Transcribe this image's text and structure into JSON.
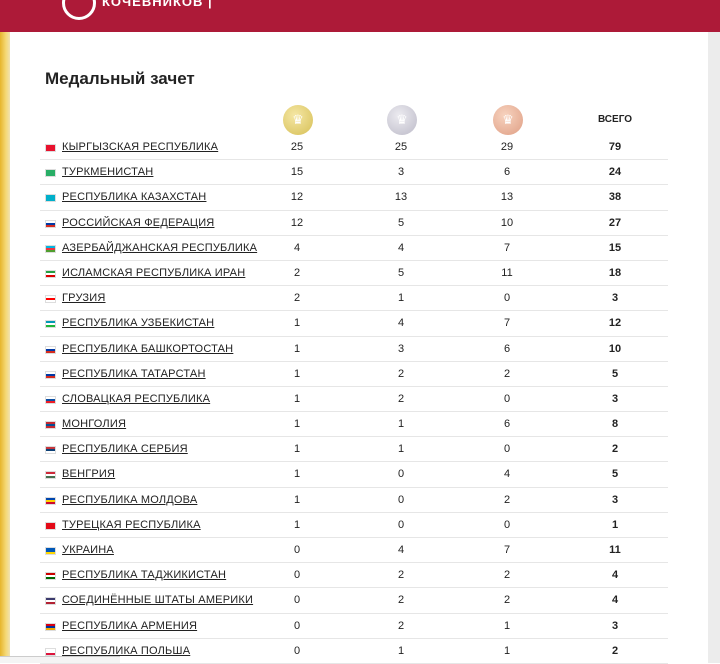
{
  "header": {
    "logo_text": "КОЧЕВНИКОВ |"
  },
  "page": {
    "title": "Медальный зачет"
  },
  "columns": {
    "gold_icon": "gold-medal-icon",
    "silver_icon": "silver-medal-icon",
    "bronze_icon": "bronze-medal-icon",
    "total": "ВСЕГО"
  },
  "rows": [
    {
      "country": "КЫРГЫЗСКАЯ РЕСПУБЛИКА",
      "gold": 25,
      "silver": 25,
      "bronze": 29,
      "total": 79,
      "flag": [
        "#e8112d",
        "#e8112d",
        "#e8112d"
      ]
    },
    {
      "country": "ТУРКМЕНИСТАН",
      "gold": 15,
      "silver": 3,
      "bronze": 6,
      "total": 24,
      "flag": [
        "#28ae66",
        "#28ae66",
        "#28ae66"
      ]
    },
    {
      "country": "РЕСПУБЛИКА КАЗАХСТАН",
      "gold": 12,
      "silver": 13,
      "bronze": 13,
      "total": 38,
      "flag": [
        "#00afca",
        "#00afca",
        "#00afca"
      ]
    },
    {
      "country": "РОССИЙСКАЯ ФЕДЕРАЦИЯ",
      "gold": 12,
      "silver": 5,
      "bronze": 10,
      "total": 27,
      "flag": [
        "#ffffff",
        "#0039a6",
        "#d52b1e"
      ]
    },
    {
      "country": "АЗЕРБАЙДЖАНСКАЯ РЕСПУБЛИКА",
      "gold": 4,
      "silver": 4,
      "bronze": 7,
      "total": 15,
      "flag": [
        "#00b5e2",
        "#ef3340",
        "#509e2f"
      ]
    },
    {
      "country": "ИСЛАМСКАЯ РЕСПУБЛИКА ИРАН",
      "gold": 2,
      "silver": 5,
      "bronze": 11,
      "total": 18,
      "flag": [
        "#239f40",
        "#ffffff",
        "#da0000"
      ]
    },
    {
      "country": "ГРУЗИЯ",
      "gold": 2,
      "silver": 1,
      "bronze": 0,
      "total": 3,
      "flag": [
        "#ffffff",
        "#ff0000",
        "#ffffff"
      ]
    },
    {
      "country": "РЕСПУБЛИКА УЗБЕКИСТАН",
      "gold": 1,
      "silver": 4,
      "bronze": 7,
      "total": 12,
      "flag": [
        "#0099b5",
        "#ffffff",
        "#1eb53a"
      ]
    },
    {
      "country": "РЕСПУБЛИКА БАШКОРТОСТАН",
      "gold": 1,
      "silver": 3,
      "bronze": 6,
      "total": 10,
      "flag": [
        "#ffffff",
        "#0039a6",
        "#d52b1e"
      ]
    },
    {
      "country": "РЕСПУБЛИКА ТАТАРСТАН",
      "gold": 1,
      "silver": 2,
      "bronze": 2,
      "total": 5,
      "flag": [
        "#ffffff",
        "#0039a6",
        "#d52b1e"
      ]
    },
    {
      "country": "СЛОВАЦКАЯ РЕСПУБЛИКА",
      "gold": 1,
      "silver": 2,
      "bronze": 0,
      "total": 3,
      "flag": [
        "#ffffff",
        "#0b4ea2",
        "#ee1c25"
      ]
    },
    {
      "country": "МОНГОЛИЯ",
      "gold": 1,
      "silver": 1,
      "bronze": 6,
      "total": 8,
      "flag": [
        "#c4272f",
        "#015197",
        "#c4272f"
      ]
    },
    {
      "country": "РЕСПУБЛИКА СЕРБИЯ",
      "gold": 1,
      "silver": 1,
      "bronze": 0,
      "total": 2,
      "flag": [
        "#c6363c",
        "#0c4076",
        "#ffffff"
      ]
    },
    {
      "country": "ВЕНГРИЯ",
      "gold": 1,
      "silver": 0,
      "bronze": 4,
      "total": 5,
      "flag": [
        "#ce2939",
        "#ffffff",
        "#477050"
      ]
    },
    {
      "country": "РЕСПУБЛИКА МОЛДОВА",
      "gold": 1,
      "silver": 0,
      "bronze": 2,
      "total": 3,
      "flag": [
        "#0046ae",
        "#ffd200",
        "#cc092f"
      ]
    },
    {
      "country": "ТУРЕЦКАЯ РЕСПУБЛИКА",
      "gold": 1,
      "silver": 0,
      "bronze": 0,
      "total": 1,
      "flag": [
        "#e30a17",
        "#e30a17",
        "#e30a17"
      ]
    },
    {
      "country": "УКРАИНА",
      "gold": 0,
      "silver": 4,
      "bronze": 7,
      "total": 11,
      "flag": [
        "#0057b7",
        "#0057b7",
        "#ffd700"
      ]
    },
    {
      "country": "РЕСПУБЛИКА ТАДЖИКИСТАН",
      "gold": 0,
      "silver": 2,
      "bronze": 2,
      "total": 4,
      "flag": [
        "#cc0000",
        "#ffffff",
        "#006600"
      ]
    },
    {
      "country": "СОЕДИНЁННЫЕ ШТАТЫ АМЕРИКИ",
      "gold": 0,
      "silver": 2,
      "bronze": 2,
      "total": 4,
      "flag": [
        "#3c3b6e",
        "#ffffff",
        "#b22234"
      ]
    },
    {
      "country": "РЕСПУБЛИКА АРМЕНИЯ",
      "gold": 0,
      "silver": 2,
      "bronze": 1,
      "total": 3,
      "flag": [
        "#d90012",
        "#0033a0",
        "#f2a800"
      ]
    },
    {
      "country": "РЕСПУБЛИКА ПОЛЬША",
      "gold": 0,
      "silver": 1,
      "bronze": 1,
      "total": 2,
      "flag": [
        "#ffffff",
        "#ffffff",
        "#dc143c"
      ]
    }
  ]
}
